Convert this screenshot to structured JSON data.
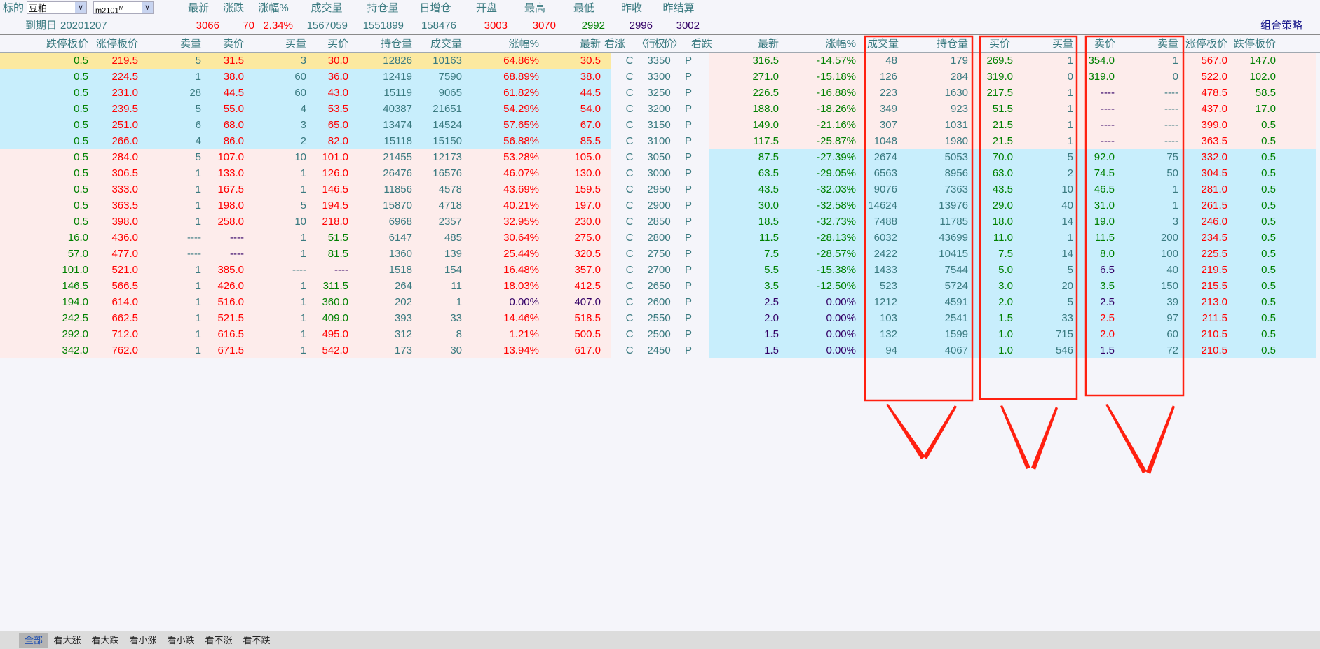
{
  "topbar": {
    "underlying_label": "标的",
    "underlying_value": "豆粕",
    "contract_value": "m2101",
    "contract_sup": "M",
    "expiry_label": "到期日",
    "expiry_value": "20201207",
    "strategy_link": "组合策略",
    "quote_fields": [
      {
        "label": "最新",
        "value": "3066",
        "color": "r"
      },
      {
        "label": "涨跌",
        "value": "70",
        "color": "r"
      },
      {
        "label": "涨幅%",
        "value": "2.34%",
        "color": "r"
      },
      {
        "label": "成交量",
        "value": "1567059",
        "color": "t"
      },
      {
        "label": "持仓量",
        "value": "1551899",
        "color": "t"
      },
      {
        "label": "日增仓",
        "value": "158476",
        "color": "t"
      },
      {
        "label": "开盘",
        "value": "3003",
        "color": "r"
      },
      {
        "label": "最高",
        "value": "3070",
        "color": "r"
      },
      {
        "label": "最低",
        "value": "2992",
        "color": "g"
      },
      {
        "label": "昨收",
        "value": "2996",
        "color": "p"
      },
      {
        "label": "昨结算",
        "value": "3002",
        "color": "p"
      }
    ]
  },
  "colors": {
    "r": "#ff0000",
    "g": "#008000",
    "p": "#330066",
    "t": "#3a7a80",
    "row_highlight": "#fce9a0",
    "row_blue": "#c8eefc",
    "row_pink": "#fdeceb",
    "annotation": "#ff2010"
  },
  "table": {
    "call_headers": [
      "跌停板价",
      "涨停板价",
      "卖量",
      "卖价",
      "买量",
      "买价",
      "持仓量",
      "成交量",
      "涨幅%",
      "最新"
    ],
    "mid_headers": [
      "看涨",
      "〈行权价〉",
      "看跌"
    ],
    "put_headers": [
      "最新",
      "涨幅%",
      "成交量",
      "持仓量",
      "买价",
      "买量",
      "卖价",
      "卖量",
      "涨停板价",
      "跌停板价"
    ],
    "call_label": "C",
    "put_label": "P",
    "rows": [
      {
        "strike": "3350",
        "call": [
          "0.5",
          "219.5",
          "5",
          "31.5",
          "3",
          "30.0",
          "12826",
          "10163",
          "64.86%",
          "30.5"
        ],
        "cc": "grtrtrttrr",
        "put": [
          "316.5",
          "-14.57%",
          "48",
          "179",
          "269.5",
          "1",
          "354.0",
          "1",
          "567.0",
          "147.0"
        ],
        "pc": "ggttgtgtrg",
        "call_bg": "row_highlight",
        "put_bg": "row_pink"
      },
      {
        "strike": "3300",
        "call": [
          "0.5",
          "224.5",
          "1",
          "38.0",
          "60",
          "36.0",
          "12419",
          "7590",
          "68.89%",
          "38.0"
        ],
        "cc": "grtrtrttrr",
        "put": [
          "271.0",
          "-15.18%",
          "126",
          "284",
          "319.0",
          "0",
          "319.0",
          "0",
          "522.0",
          "102.0"
        ],
        "pc": "ggttgtgtrg",
        "call_bg": "row_blue",
        "put_bg": "row_pink"
      },
      {
        "strike": "3250",
        "call": [
          "0.5",
          "231.0",
          "28",
          "44.5",
          "60",
          "43.0",
          "15119",
          "9065",
          "61.82%",
          "44.5"
        ],
        "cc": "grtrtrttrr",
        "put": [
          "226.5",
          "-16.88%",
          "223",
          "1630",
          "217.5",
          "1",
          "----",
          "----",
          "478.5",
          "58.5"
        ],
        "pc": "ggttgtptrg",
        "call_bg": "row_blue",
        "put_bg": "row_pink"
      },
      {
        "strike": "3200",
        "call": [
          "0.5",
          "239.5",
          "5",
          "55.0",
          "4",
          "53.5",
          "40387",
          "21651",
          "54.29%",
          "54.0"
        ],
        "cc": "grtrtrttrr",
        "put": [
          "188.0",
          "-18.26%",
          "349",
          "923",
          "51.5",
          "1",
          "----",
          "----",
          "437.0",
          "17.0"
        ],
        "pc": "ggttgtptrg",
        "call_bg": "row_blue",
        "put_bg": "row_pink"
      },
      {
        "strike": "3150",
        "call": [
          "0.5",
          "251.0",
          "6",
          "68.0",
          "3",
          "65.0",
          "13474",
          "14524",
          "57.65%",
          "67.0"
        ],
        "cc": "grtrtrttrr",
        "put": [
          "149.0",
          "-21.16%",
          "307",
          "1031",
          "21.5",
          "1",
          "----",
          "----",
          "399.0",
          "0.5"
        ],
        "pc": "ggttgtptrg",
        "call_bg": "row_blue",
        "put_bg": "row_pink"
      },
      {
        "strike": "3100",
        "call": [
          "0.5",
          "266.0",
          "4",
          "86.0",
          "2",
          "82.0",
          "15118",
          "15150",
          "56.88%",
          "85.5"
        ],
        "cc": "grtrtrttrr",
        "put": [
          "117.5",
          "-25.87%",
          "1048",
          "1980",
          "21.5",
          "1",
          "----",
          "----",
          "363.5",
          "0.5"
        ],
        "pc": "ggttgtptrg",
        "call_bg": "row_blue",
        "put_bg": "row_pink"
      },
      {
        "strike": "3050",
        "call": [
          "0.5",
          "284.0",
          "5",
          "107.0",
          "10",
          "101.0",
          "21455",
          "12173",
          "53.28%",
          "105.0"
        ],
        "cc": "grtrtrttrr",
        "put": [
          "87.5",
          "-27.39%",
          "2674",
          "5053",
          "70.0",
          "5",
          "92.0",
          "75",
          "332.0",
          "0.5"
        ],
        "pc": "ggttgtgtrg",
        "call_bg": "row_pink",
        "put_bg": "row_blue"
      },
      {
        "strike": "3000",
        "call": [
          "0.5",
          "306.5",
          "1",
          "133.0",
          "1",
          "126.0",
          "26476",
          "16576",
          "46.07%",
          "130.0"
        ],
        "cc": "grtrtrttrr",
        "put": [
          "63.5",
          "-29.05%",
          "6563",
          "8956",
          "63.0",
          "2",
          "74.5",
          "50",
          "304.5",
          "0.5"
        ],
        "pc": "ggttgtgtrg",
        "call_bg": "row_pink",
        "put_bg": "row_blue"
      },
      {
        "strike": "2950",
        "call": [
          "0.5",
          "333.0",
          "1",
          "167.5",
          "1",
          "146.5",
          "11856",
          "4578",
          "43.69%",
          "159.5"
        ],
        "cc": "grtrtrttrr",
        "put": [
          "43.5",
          "-32.03%",
          "9076",
          "7363",
          "43.5",
          "10",
          "46.5",
          "1",
          "281.0",
          "0.5"
        ],
        "pc": "ggttgtgtrg",
        "call_bg": "row_pink",
        "put_bg": "row_blue"
      },
      {
        "strike": "2900",
        "call": [
          "0.5",
          "363.5",
          "1",
          "198.0",
          "5",
          "194.5",
          "15870",
          "4718",
          "40.21%",
          "197.0"
        ],
        "cc": "grtrtrttrr",
        "put": [
          "30.0",
          "-32.58%",
          "14624",
          "13976",
          "29.0",
          "40",
          "31.0",
          "1",
          "261.5",
          "0.5"
        ],
        "pc": "ggttgtgtrg",
        "call_bg": "row_pink",
        "put_bg": "row_blue"
      },
      {
        "strike": "2850",
        "call": [
          "0.5",
          "398.0",
          "1",
          "258.0",
          "10",
          "218.0",
          "6968",
          "2357",
          "32.95%",
          "230.0"
        ],
        "cc": "grtrtrttrr",
        "put": [
          "18.5",
          "-32.73%",
          "7488",
          "11785",
          "18.0",
          "14",
          "19.0",
          "3",
          "246.0",
          "0.5"
        ],
        "pc": "ggttgtgtrg",
        "call_bg": "row_pink",
        "put_bg": "row_blue"
      },
      {
        "strike": "2800",
        "call": [
          "16.0",
          "436.0",
          "----",
          "----",
          "1",
          "51.5",
          "6147",
          "485",
          "30.64%",
          "275.0"
        ],
        "cc": "grtptgttrr",
        "put": [
          "11.5",
          "-28.13%",
          "6032",
          "43699",
          "11.0",
          "1",
          "11.5",
          "200",
          "234.5",
          "0.5"
        ],
        "pc": "ggttgtgtrg",
        "call_bg": "row_pink",
        "put_bg": "row_blue"
      },
      {
        "strike": "2750",
        "call": [
          "57.0",
          "477.0",
          "----",
          "----",
          "1",
          "81.5",
          "1360",
          "139",
          "25.44%",
          "320.5"
        ],
        "cc": "grtptgttrr",
        "put": [
          "7.5",
          "-28.57%",
          "2422",
          "10415",
          "7.5",
          "14",
          "8.0",
          "100",
          "225.5",
          "0.5"
        ],
        "pc": "ggttgtgtrg",
        "call_bg": "row_pink",
        "put_bg": "row_blue"
      },
      {
        "strike": "2700",
        "call": [
          "101.0",
          "521.0",
          "1",
          "385.0",
          "----",
          "----",
          "1518",
          "154",
          "16.48%",
          "357.0"
        ],
        "cc": "grtrtpttrr",
        "put": [
          "5.5",
          "-15.38%",
          "1433",
          "7544",
          "5.0",
          "5",
          "6.5",
          "40",
          "219.5",
          "0.5"
        ],
        "pc": "ggttgtptrg",
        "call_bg": "row_pink",
        "put_bg": "row_blue"
      },
      {
        "strike": "2650",
        "call": [
          "146.5",
          "566.5",
          "1",
          "426.0",
          "1",
          "311.5",
          "264",
          "11",
          "18.03%",
          "412.5"
        ],
        "cc": "grtrtgttrr",
        "put": [
          "3.5",
          "-12.50%",
          "523",
          "5724",
          "3.0",
          "20",
          "3.5",
          "150",
          "215.5",
          "0.5"
        ],
        "pc": "ggttgtgtrg",
        "call_bg": "row_pink",
        "put_bg": "row_blue"
      },
      {
        "strike": "2600",
        "call": [
          "194.0",
          "614.0",
          "1",
          "516.0",
          "1",
          "360.0",
          "202",
          "1",
          "0.00%",
          "407.0"
        ],
        "cc": "grtrtgttpp",
        "put": [
          "2.5",
          "0.00%",
          "1212",
          "4591",
          "2.0",
          "5",
          "2.5",
          "39",
          "213.0",
          "0.5"
        ],
        "pc": "ppttgtptrg",
        "call_bg": "row_pink",
        "put_bg": "row_blue"
      },
      {
        "strike": "2550",
        "call": [
          "242.5",
          "662.5",
          "1",
          "521.5",
          "1",
          "409.0",
          "393",
          "33",
          "14.46%",
          "518.5"
        ],
        "cc": "grtrtgttrr",
        "put": [
          "2.0",
          "0.00%",
          "103",
          "2541",
          "1.5",
          "33",
          "2.5",
          "97",
          "211.5",
          "0.5"
        ],
        "pc": "ppttgtrtrg",
        "call_bg": "row_pink",
        "put_bg": "row_blue"
      },
      {
        "strike": "2500",
        "call": [
          "292.0",
          "712.0",
          "1",
          "616.5",
          "1",
          "495.0",
          "312",
          "8",
          "1.21%",
          "500.5"
        ],
        "cc": "grtrtrttrr",
        "put": [
          "1.5",
          "0.00%",
          "132",
          "1599",
          "1.0",
          "715",
          "2.0",
          "60",
          "210.5",
          "0.5"
        ],
        "pc": "ppttgtrtrg",
        "call_bg": "row_pink",
        "put_bg": "row_blue"
      },
      {
        "strike": "2450",
        "call": [
          "342.0",
          "762.0",
          "1",
          "671.5",
          "1",
          "542.0",
          "173",
          "30",
          "13.94%",
          "617.0"
        ],
        "cc": "grtrtrttrr",
        "put": [
          "1.5",
          "0.00%",
          "94",
          "4067",
          "1.0",
          "546",
          "1.5",
          "72",
          "210.5",
          "0.5"
        ],
        "pc": "ppttgtptrg",
        "call_bg": "row_pink",
        "put_bg": "row_blue"
      }
    ]
  },
  "filter_tabs": {
    "items": [
      "全部",
      "看大涨",
      "看大跌",
      "看小涨",
      "看小跌",
      "看不涨",
      "看不跌"
    ],
    "active": "全部"
  }
}
